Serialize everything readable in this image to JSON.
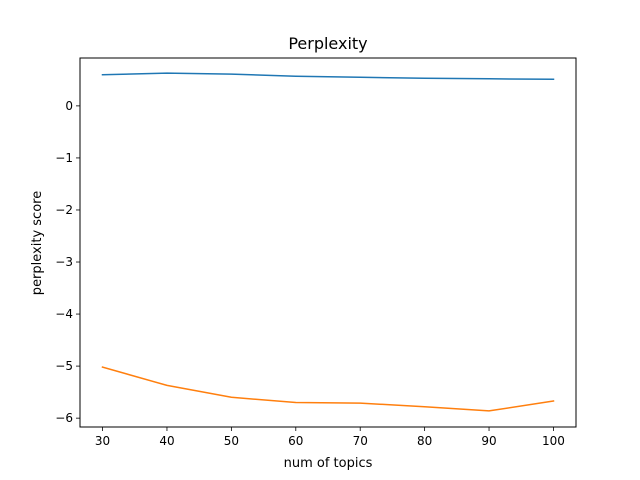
{
  "chart_data": {
    "type": "line",
    "title": "Perplexity",
    "xlabel": "num of topics",
    "ylabel": "perplexity score",
    "x": [
      30,
      40,
      50,
      60,
      70,
      80,
      90,
      100
    ],
    "xticks": [
      30,
      40,
      50,
      60,
      70,
      80,
      90,
      100
    ],
    "yticks": [
      0,
      -1,
      -2,
      -3,
      -4,
      -5,
      -6
    ],
    "ytick_labels": [
      "0",
      "−1",
      "−2",
      "−3",
      "−4",
      "−5",
      "−6"
    ],
    "xlim": [
      26.5,
      103.5
    ],
    "ylim": [
      -6.17,
      0.92
    ],
    "grid": false,
    "series": [
      {
        "values": [
          0.6,
          0.63,
          0.61,
          0.57,
          0.55,
          0.53,
          0.52,
          0.51
        ],
        "color": "#1f77b4"
      },
      {
        "values": [
          -5.02,
          -5.37,
          -5.6,
          -5.7,
          -5.71,
          -5.78,
          -5.86,
          -5.67
        ],
        "color": "#ff7f0e"
      }
    ]
  }
}
